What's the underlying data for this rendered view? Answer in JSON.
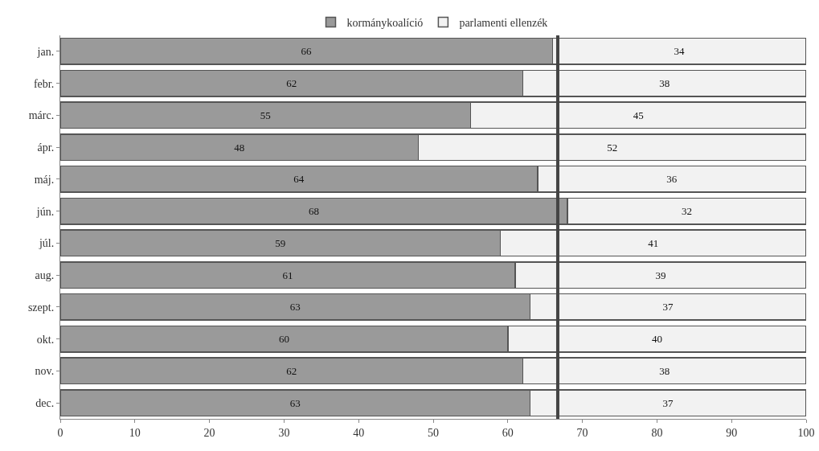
{
  "chart_data": {
    "type": "bar",
    "orientation": "horizontal",
    "stacked": true,
    "data_labels": true,
    "legend": "top",
    "grid": false,
    "categories": [
      "jan.",
      "febr.",
      "márc.",
      "ápr.",
      "máj.",
      "jún.",
      "júl.",
      "aug.",
      "szept.",
      "okt.",
      "nov.",
      "dec."
    ],
    "series": [
      {
        "name": "kormánykoalíció",
        "color": "#9a9a9a",
        "values": [
          66,
          62,
          55,
          48,
          64,
          68,
          59,
          61,
          63,
          60,
          62,
          63
        ]
      },
      {
        "name": "parlamenti ellenzék",
        "color": "#f2f2f2",
        "values": [
          34,
          38,
          45,
          52,
          36,
          32,
          41,
          39,
          37,
          40,
          38,
          37
        ]
      }
    ],
    "xlim": [
      0,
      100
    ],
    "xticks": [
      0,
      10,
      20,
      30,
      40,
      50,
      60,
      70,
      80,
      90,
      100
    ],
    "ref_lines": [
      {
        "axis": "x",
        "value": 66.7,
        "color": "#444444"
      }
    ]
  }
}
